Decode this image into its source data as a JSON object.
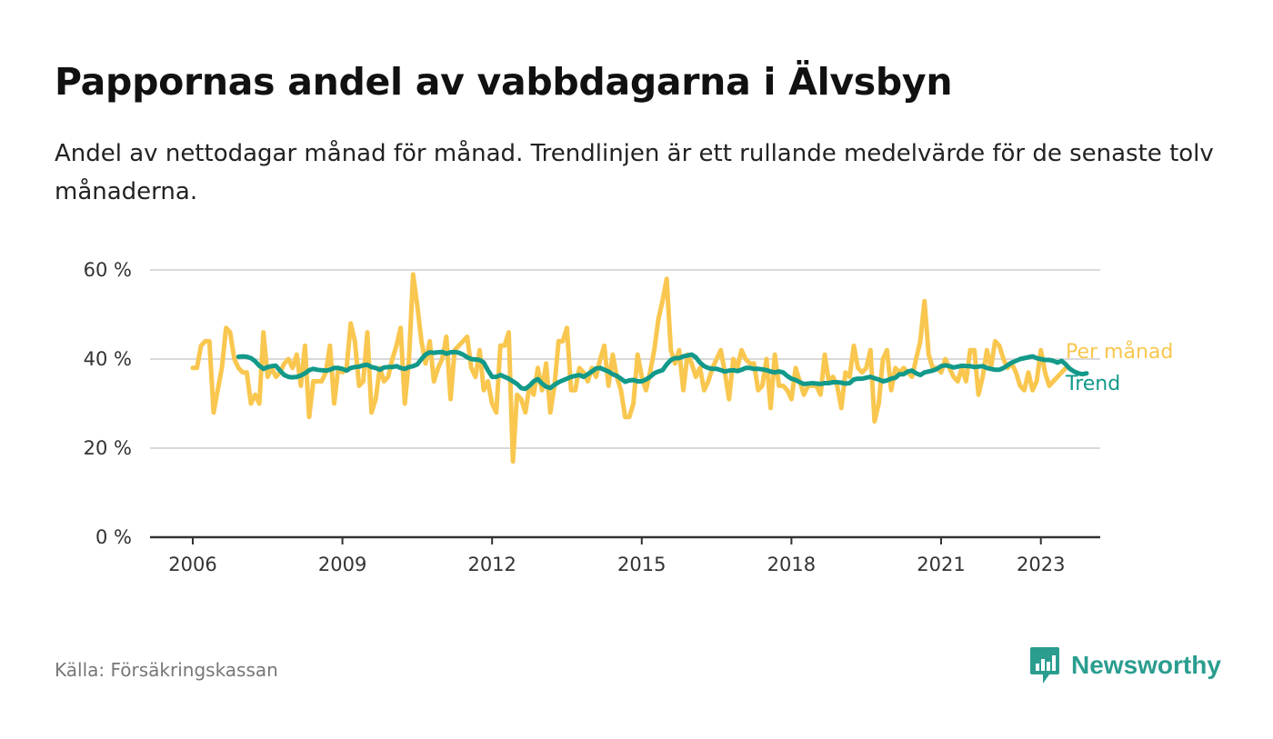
{
  "header": {
    "title": "Pappornas andel av vabbdagarna i Älvsbyn",
    "subtitle": "Andel av nettodagar månad för månad. Trendlinjen är ett rullande medelvärde för de senaste tolv månaderna."
  },
  "footer": {
    "source": "Källa: Försäkringskassan",
    "brand": "Newsworthy",
    "brand_icon": "bar-chart-speech-bubble-icon"
  },
  "colors": {
    "monthly": "#f9c74f",
    "trend": "#12998a",
    "grid": "#d9d9d9",
    "axis": "#333333",
    "brand": "#2a9d8f"
  },
  "chart_data": {
    "type": "line",
    "title": "Pappornas andel av vabbdagarna i Älvsbyn",
    "xlabel": "",
    "ylabel": "",
    "x_range": [
      "2006-01",
      "2023-05"
    ],
    "ylim": [
      0,
      60
    ],
    "y_ticks": [
      "0 %",
      "20 %",
      "40 %",
      "60 %"
    ],
    "x_ticks": [
      "2006",
      "2009",
      "2012",
      "2015",
      "2018",
      "2021",
      "2023"
    ],
    "x_tick_years": [
      2006,
      2009,
      2012,
      2015,
      2018,
      2021,
      2023
    ],
    "grid": "horizontal",
    "legend": "direct labels at line ends, right",
    "series": [
      {
        "name": "Per månad",
        "start": "2006-01",
        "values": [
          38,
          38,
          43,
          44,
          44,
          28,
          33,
          38,
          47,
          46,
          40,
          38,
          37,
          37,
          30,
          32,
          30,
          46,
          36,
          38,
          36,
          37,
          39,
          40,
          38,
          41,
          34,
          43,
          27,
          35,
          35,
          35,
          37,
          43,
          30,
          38,
          37,
          38,
          48,
          44,
          34,
          35,
          46,
          28,
          31,
          38,
          35,
          36,
          40,
          43,
          47,
          30,
          40,
          59,
          52,
          44,
          39,
          44,
          35,
          38,
          40,
          45,
          31,
          42,
          43,
          44,
          45,
          38,
          36,
          42,
          33,
          35,
          30,
          28,
          43,
          43,
          46,
          17,
          32,
          31,
          28,
          34,
          32,
          38,
          33,
          39,
          28,
          34,
          44,
          44,
          47,
          33,
          33,
          38,
          37,
          35,
          38,
          36,
          40,
          43,
          34,
          41,
          36,
          33,
          27,
          27,
          30,
          41,
          36,
          33,
          37,
          42,
          49,
          53,
          58,
          42,
          39,
          42,
          33,
          41,
          39,
          36,
          38,
          33,
          35,
          38,
          40,
          42,
          37,
          31,
          40,
          38,
          42,
          40,
          39,
          39,
          33,
          34,
          40,
          29,
          41,
          34,
          34,
          33,
          31,
          38,
          35,
          32,
          34,
          34,
          34,
          32,
          41,
          35,
          36,
          34,
          29,
          37,
          36,
          43,
          38,
          37,
          38,
          42,
          26,
          30,
          40,
          42,
          33,
          38,
          37,
          38,
          37,
          36,
          40,
          44,
          53,
          41,
          38,
          38,
          37,
          40,
          38,
          36,
          35,
          38,
          35,
          42,
          42,
          32,
          36,
          42,
          38,
          44,
          43,
          40,
          38,
          39,
          37,
          34,
          33,
          37,
          33,
          35,
          42,
          37,
          34,
          35,
          36,
          37,
          38
        ]
      },
      {
        "name": "Trend",
        "start": "2006-12",
        "values": [
          40.5,
          40.6,
          40.5,
          40.2,
          39.5,
          38.5,
          37.8,
          38.2,
          38.4,
          38.5,
          37.4,
          36.4,
          36.0,
          35.9,
          36.0,
          36.3,
          36.8,
          37.5,
          37.8,
          37.6,
          37.5,
          37.4,
          37.6,
          38.0,
          38.0,
          37.8,
          37.4,
          38.0,
          38.2,
          38.3,
          38.6,
          38.7,
          38.2,
          38.0,
          37.6,
          38.1,
          38.2,
          38.2,
          38.4,
          38.0,
          37.8,
          38.2,
          38.4,
          38.8,
          40.0,
          41.0,
          41.5,
          41.4,
          41.5,
          41.6,
          41.2,
          41.5,
          41.6,
          41.4,
          41.0,
          40.4,
          40.0,
          39.9,
          39.8,
          39.2,
          37.5,
          36.0,
          36.0,
          36.4,
          36.0,
          35.6,
          35.0,
          34.4,
          33.5,
          33.3,
          34.0,
          35.0,
          35.5,
          34.5,
          33.8,
          33.5,
          34.2,
          34.8,
          35.2,
          35.6,
          36.0,
          36.2,
          36.4,
          36.0,
          36.6,
          37.2,
          37.9,
          38.0,
          37.6,
          37.2,
          36.6,
          36.2,
          35.6,
          34.9,
          35.2,
          35.3,
          35.0,
          35.0,
          35.4,
          36.0,
          36.8,
          37.2,
          37.5,
          38.8,
          39.8,
          40.2,
          40.2,
          40.6,
          40.8,
          41.0,
          40.4,
          39.2,
          38.4,
          38.0,
          37.8,
          37.8,
          37.5,
          37.2,
          37.4,
          37.5,
          37.3,
          37.6,
          38.0,
          38.0,
          37.8,
          37.8,
          37.7,
          37.5,
          37.2,
          37.0,
          37.2,
          37.0,
          36.2,
          35.6,
          35.3,
          34.8,
          34.4,
          34.5,
          34.6,
          34.5,
          34.4,
          34.6,
          34.6,
          34.8,
          34.8,
          34.7,
          34.5,
          34.6,
          35.4,
          35.6,
          35.6,
          35.8,
          36.0,
          35.7,
          35.4,
          35.0,
          35.2,
          35.6,
          35.8,
          36.6,
          36.6,
          37.2,
          37.4,
          36.8,
          36.4,
          37.0,
          37.2,
          37.4,
          37.8,
          38.4,
          38.6,
          38.4,
          38.1,
          38.3,
          38.5,
          38.4,
          38.4,
          38.2,
          38.3,
          38.4,
          38.0,
          37.8,
          37.6,
          37.6,
          38.0,
          38.6,
          39.2,
          39.6,
          40.0,
          40.2,
          40.4,
          40.6,
          40.2,
          40.0,
          39.8,
          39.8,
          39.6,
          39.2,
          39.6,
          38.8,
          37.8,
          37.2,
          36.8,
          36.6,
          36.8
        ]
      }
    ]
  }
}
